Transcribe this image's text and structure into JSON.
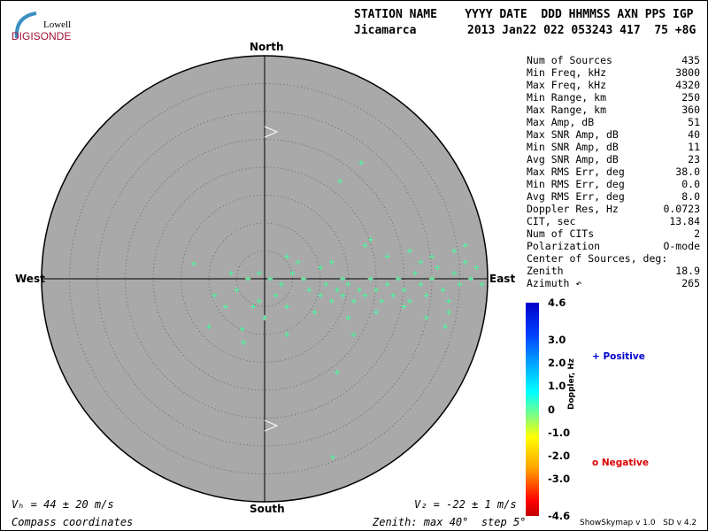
{
  "logo": {
    "line1": "Lowell",
    "line2": "DIGISONDE"
  },
  "header": {
    "row1": "STATION NAME    YYYY DATE  DDD HHMMSS AXN PPS IGP",
    "station": "Jicamarca",
    "row2": "2013 Jan22 022 053243 417  75 +8G"
  },
  "stats": [
    {
      "label": "Num of Sources",
      "value": "435"
    },
    {
      "label": "Min Freq, kHz",
      "value": "3800"
    },
    {
      "label": "Max Freq, kHz",
      "value": "4320"
    },
    {
      "label": "Min Range, km",
      "value": "250"
    },
    {
      "label": "Max Range, km",
      "value": "360"
    },
    {
      "label": "Max Amp, dB",
      "value": "51"
    },
    {
      "label": "Max SNR Amp, dB",
      "value": "40"
    },
    {
      "label": "Min SNR Amp, dB",
      "value": "11"
    },
    {
      "label": "Avg SNR Amp, dB",
      "value": "23"
    },
    {
      "label": "Max RMS Err, deg",
      "value": "38.0"
    },
    {
      "label": "Min RMS Err, deg",
      "value": "0.0"
    },
    {
      "label": "Avg RMS Err, deg",
      "value": "8.0"
    },
    {
      "label": "Doppler Res, Hz",
      "value": "0.0723"
    },
    {
      "label": "CIT, sec",
      "value": "13.84"
    },
    {
      "label": "Num of CITs",
      "value": "2"
    },
    {
      "label": "Polarization",
      "value": "O-mode"
    },
    {
      "label": "Center of Sources, deg:",
      "value": ""
    },
    {
      "label": "      Zenith",
      "value": "18.9"
    },
    {
      "label": "      Azimuth ↶",
      "value": "265"
    }
  ],
  "footer": {
    "vh": "Vₕ = 44 ± 20 m/s",
    "vz": "V₂ = -22 ± 1 m/s",
    "coords": "Compass coordinates",
    "zenith": "Zenith: max 40°  step 5°",
    "version": "ShowSkymap v 1.0   SD v 4.2"
  },
  "chart_data": {
    "type": "scatter",
    "directions": {
      "north": "North",
      "south": "South",
      "east": "East",
      "west": "West"
    },
    "zenith_max_deg": 40,
    "zenith_step_deg": 5,
    "colorbar": {
      "label": "Doppler, Hz",
      "range": [
        -4.6,
        4.6
      ],
      "ticks": [
        "4.6",
        "3.0",
        "2.0",
        "1.0",
        "0",
        "-1.0",
        "-2.0",
        "-3.0",
        "-4.6"
      ]
    },
    "legend": {
      "positive": "Positive",
      "negative": "Negative",
      "positive_color": "#0000cc",
      "negative_color": "#dd0000"
    },
    "background_color": "#a9a9a9",
    "points_east_north_deg": [
      [
        13.5,
        17.5
      ],
      [
        17.3,
        20.8
      ],
      [
        12.2,
        -32
      ],
      [
        13,
        -16.8
      ],
      [
        32.4,
        -8.6
      ],
      [
        -10,
        -8.6
      ],
      [
        -12.7,
        2.7
      ],
      [
        -3.8,
        -11.4
      ],
      [
        -7,
        -5
      ],
      [
        -5,
        -2
      ],
      [
        -3,
        0
      ],
      [
        -1,
        1
      ],
      [
        1,
        0
      ],
      [
        3,
        -1
      ],
      [
        5,
        1
      ],
      [
        7,
        0
      ],
      [
        8,
        -2
      ],
      [
        10,
        -3
      ],
      [
        11,
        -1
      ],
      [
        12,
        -4
      ],
      [
        13,
        -2
      ],
      [
        14,
        -3
      ],
      [
        15,
        -1
      ],
      [
        16,
        -4
      ],
      [
        17,
        -2
      ],
      [
        18,
        -3
      ],
      [
        19,
        0
      ],
      [
        20,
        -2
      ],
      [
        21,
        -4
      ],
      [
        22,
        -1
      ],
      [
        23,
        -3
      ],
      [
        24,
        0
      ],
      [
        25,
        -2
      ],
      [
        26,
        -4
      ],
      [
        27,
        1
      ],
      [
        28,
        -1
      ],
      [
        29,
        -3
      ],
      [
        30,
        0
      ],
      [
        31,
        2
      ],
      [
        32,
        -2
      ],
      [
        33,
        -4
      ],
      [
        34,
        1
      ],
      [
        35,
        -1
      ],
      [
        36,
        3
      ],
      [
        37,
        0
      ],
      [
        38,
        2
      ],
      [
        39,
        -1
      ],
      [
        18,
        6
      ],
      [
        22,
        4
      ],
      [
        26,
        5
      ],
      [
        30,
        4
      ],
      [
        34,
        5
      ],
      [
        36,
        6
      ],
      [
        19,
        7
      ],
      [
        -2,
        -5
      ],
      [
        0,
        -7
      ],
      [
        2,
        -3
      ],
      [
        4,
        -5
      ],
      [
        9,
        -6
      ],
      [
        15,
        -7
      ],
      [
        20,
        -6
      ],
      [
        25,
        -5
      ],
      [
        29,
        -7
      ],
      [
        -9,
        -3
      ],
      [
        -6,
        1
      ],
      [
        4,
        4
      ],
      [
        6,
        3
      ],
      [
        10,
        2
      ],
      [
        -4,
        -9
      ],
      [
        4,
        -10
      ],
      [
        16,
        -10
      ],
      [
        -1,
        -4
      ],
      [
        12,
        3
      ],
      [
        28,
        3
      ],
      [
        33,
        -6
      ],
      [
        14,
        0
      ]
    ],
    "point_color": "#40ff9a"
  }
}
